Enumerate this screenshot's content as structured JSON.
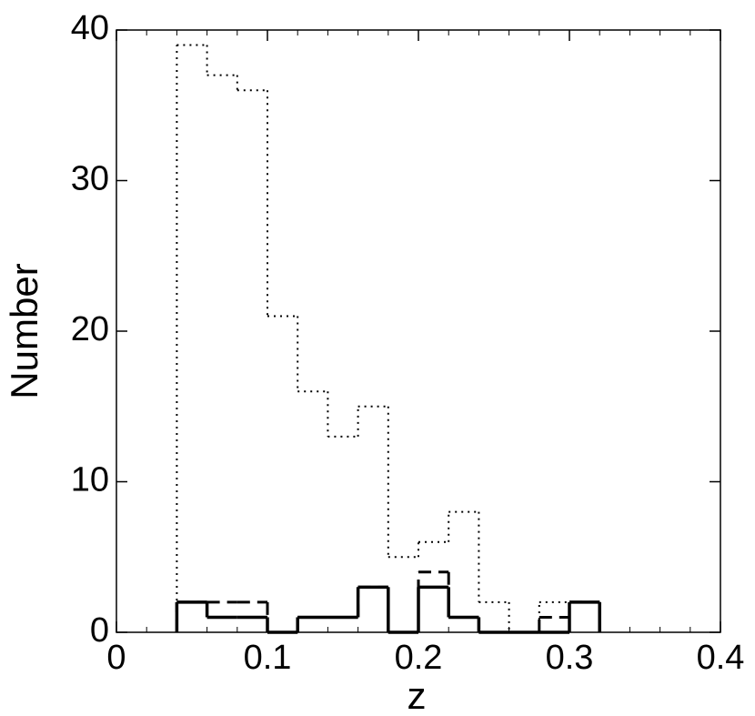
{
  "chart_data": {
    "type": "histogram",
    "x_label": "z",
    "y_label": "Number",
    "bins": [
      0.04,
      0.06,
      0.08,
      0.1,
      0.12,
      0.14,
      0.16,
      0.18,
      0.2,
      0.22,
      0.24,
      0.26,
      0.28,
      0.3,
      0.32
    ],
    "series": [
      {
        "color": "#000000",
        "style": "dotted",
        "width": 2,
        "values": [
          39,
          37,
          36,
          21,
          16,
          13,
          15,
          5,
          6,
          8,
          2,
          0,
          2,
          2
        ]
      },
      {
        "color": "#000000",
        "style": "dashed",
        "width": 3,
        "values": [
          2,
          2,
          2,
          0,
          1,
          1,
          3,
          0,
          4,
          1,
          0,
          0,
          1,
          2
        ]
      },
      {
        "color": "#000000",
        "style": "solid",
        "width": 3.5,
        "values": [
          2,
          1,
          1,
          0,
          1,
          1,
          3,
          0,
          3,
          1,
          0,
          0,
          0,
          2
        ]
      }
    ],
    "xlim": [
      0,
      0.4
    ],
    "xticks": [
      0,
      0.1,
      0.2,
      0.3,
      0.4
    ],
    "ylim": [
      0,
      40
    ],
    "yticks": [
      0,
      10,
      20,
      30,
      40
    ]
  }
}
